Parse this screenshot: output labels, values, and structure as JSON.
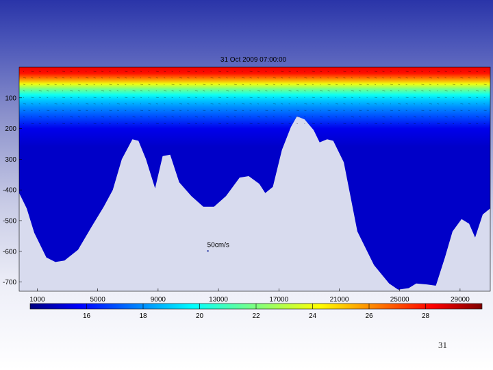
{
  "slide": {
    "number": "31"
  },
  "chart_data": {
    "type": "heatmap",
    "title": "31 Oct 2009 07:00:00",
    "xlabel": "",
    "ylabel": "",
    "xlim": [
      -200,
      31000
    ],
    "ylim": [
      -730,
      0
    ],
    "x_ticks": [
      {
        "value": 1000,
        "label": "1000"
      },
      {
        "value": 5000,
        "label": "5000"
      },
      {
        "value": 9000,
        "label": "9000"
      },
      {
        "value": 13000,
        "label": "13000"
      },
      {
        "value": 17000,
        "label": "17000"
      },
      {
        "value": 21000,
        "label": "21000"
      },
      {
        "value": 25000,
        "label": "25000"
      },
      {
        "value": 29000,
        "label": "29000"
      }
    ],
    "y_ticks": [
      {
        "value": -100,
        "label": "100"
      },
      {
        "value": -200,
        "label": "200"
      },
      {
        "value": -300,
        "label": "300"
      },
      {
        "value": -400,
        "label": "-400"
      },
      {
        "value": -500,
        "label": "-500"
      },
      {
        "value": -600,
        "label": "-600"
      },
      {
        "value": -700,
        "label": "-700"
      }
    ],
    "colorbar": {
      "range": [
        14,
        30
      ],
      "ticks": [
        {
          "value": 16,
          "label": "16"
        },
        {
          "value": 18,
          "label": "18"
        },
        {
          "value": 20,
          "label": "20"
        },
        {
          "value": 22,
          "label": "22"
        },
        {
          "value": 24,
          "label": "24"
        },
        {
          "value": 26,
          "label": "26"
        },
        {
          "value": 28,
          "label": "28"
        }
      ]
    },
    "temperature_profile": [
      {
        "depth": 0,
        "value": 28.5
      },
      {
        "depth": -20,
        "value": 28
      },
      {
        "depth": -35,
        "value": 26.5
      },
      {
        "depth": -55,
        "value": 24
      },
      {
        "depth": -70,
        "value": 22
      },
      {
        "depth": -90,
        "value": 20
      },
      {
        "depth": -105,
        "value": 19
      },
      {
        "depth": -130,
        "value": 18
      },
      {
        "depth": -160,
        "value": 17
      },
      {
        "depth": -200,
        "value": 15.5
      },
      {
        "depth": -260,
        "value": 15
      }
    ],
    "bathymetry": [
      {
        "x": -200,
        "depth": -410
      },
      {
        "x": 300,
        "depth": -460
      },
      {
        "x": 800,
        "depth": -540
      },
      {
        "x": 1600,
        "depth": -620
      },
      {
        "x": 2200,
        "depth": -635
      },
      {
        "x": 2800,
        "depth": -630
      },
      {
        "x": 3700,
        "depth": -595
      },
      {
        "x": 4600,
        "depth": -520
      },
      {
        "x": 5400,
        "depth": -455
      },
      {
        "x": 6000,
        "depth": -400
      },
      {
        "x": 6600,
        "depth": -300
      },
      {
        "x": 7300,
        "depth": -235
      },
      {
        "x": 7700,
        "depth": -240
      },
      {
        "x": 8200,
        "depth": -300
      },
      {
        "x": 8800,
        "depth": -395
      },
      {
        "x": 9300,
        "depth": -290
      },
      {
        "x": 9800,
        "depth": -285
      },
      {
        "x": 10400,
        "depth": -375
      },
      {
        "x": 11200,
        "depth": -420
      },
      {
        "x": 12000,
        "depth": -455
      },
      {
        "x": 12700,
        "depth": -455
      },
      {
        "x": 13500,
        "depth": -420
      },
      {
        "x": 14400,
        "depth": -360
      },
      {
        "x": 15000,
        "depth": -355
      },
      {
        "x": 15700,
        "depth": -380
      },
      {
        "x": 16100,
        "depth": -410
      },
      {
        "x": 16600,
        "depth": -390
      },
      {
        "x": 17200,
        "depth": -270
      },
      {
        "x": 17800,
        "depth": -195
      },
      {
        "x": 18200,
        "depth": -160
      },
      {
        "x": 18700,
        "depth": -170
      },
      {
        "x": 19300,
        "depth": -205
      },
      {
        "x": 19700,
        "depth": -245
      },
      {
        "x": 20200,
        "depth": -235
      },
      {
        "x": 20600,
        "depth": -240
      },
      {
        "x": 21300,
        "depth": -310
      },
      {
        "x": 22200,
        "depth": -535
      },
      {
        "x": 23300,
        "depth": -645
      },
      {
        "x": 24300,
        "depth": -705
      },
      {
        "x": 24900,
        "depth": -725
      },
      {
        "x": 25600,
        "depth": -720
      },
      {
        "x": 26100,
        "depth": -705
      },
      {
        "x": 26800,
        "depth": -708
      },
      {
        "x": 27400,
        "depth": -712
      },
      {
        "x": 28000,
        "depth": -620
      },
      {
        "x": 28500,
        "depth": -535
      },
      {
        "x": 29100,
        "depth": -495
      },
      {
        "x": 29600,
        "depth": -510
      },
      {
        "x": 30000,
        "depth": -555
      },
      {
        "x": 30500,
        "depth": -480
      },
      {
        "x": 31000,
        "depth": -460
      }
    ],
    "annotations": [
      {
        "text": "50cm/s",
        "x": 12300,
        "depth": -590
      }
    ]
  }
}
